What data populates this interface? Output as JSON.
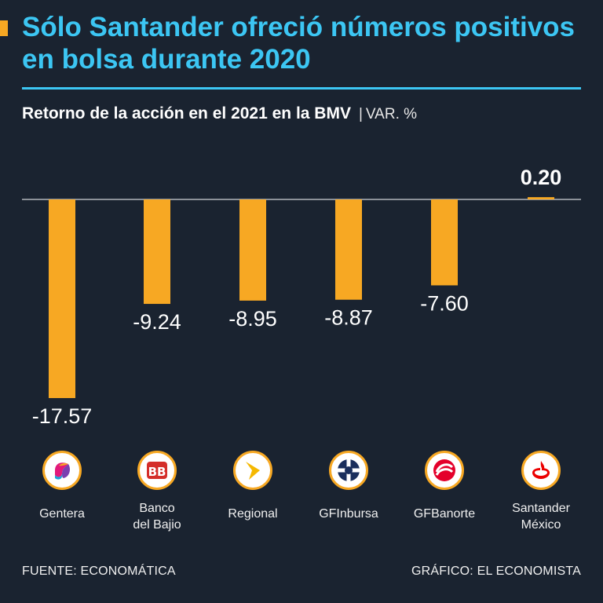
{
  "header": {
    "title": "Sólo Santander ofreció números positivos en bolsa durante 2020",
    "subtitle": "Retorno de la acción en el 2021 en la BMV",
    "separator": "|",
    "unit": "VAR. %"
  },
  "chart_data": {
    "type": "bar",
    "title": "Retorno de la acción en el 2021 en la BMV",
    "ylabel": "VAR. %",
    "xlabel": "",
    "categories": [
      "Gentera",
      "Banco del Bajio",
      "Regional",
      "GFInbursa",
      "GFBanorte",
      "Santander México"
    ],
    "values": [
      -17.57,
      -9.24,
      -8.95,
      -8.87,
      -7.6,
      0.2
    ],
    "data_labels": [
      "-17.57",
      "-9.24",
      "-8.95",
      "-8.87",
      "-7.60",
      "0.20"
    ],
    "ylim": [
      -20,
      1
    ],
    "grid": false,
    "legend": "none",
    "bar_color": "#f7a823"
  },
  "labels": [
    {
      "line1": "Gentera",
      "line2": ""
    },
    {
      "line1": "Banco",
      "line2": "del Bajio"
    },
    {
      "line1": "Regional",
      "line2": ""
    },
    {
      "line1": "GFInbursa",
      "line2": ""
    },
    {
      "line1": "GFBanorte",
      "line2": ""
    },
    {
      "line1": "Santander",
      "line2": "México"
    }
  ],
  "logos": [
    "gentera-logo-icon",
    "banbajio-logo-icon",
    "regional-logo-icon",
    "inbursa-logo-icon",
    "banorte-logo-icon",
    "santander-logo-icon"
  ],
  "footer": {
    "source": "FUENTE: ECONOMÁTICA",
    "credit": "GRÁFICO: EL ECONOMISTA"
  },
  "colors": {
    "background": "#1a2330",
    "accent": "#f7a823",
    "title": "#3cc6f3"
  }
}
